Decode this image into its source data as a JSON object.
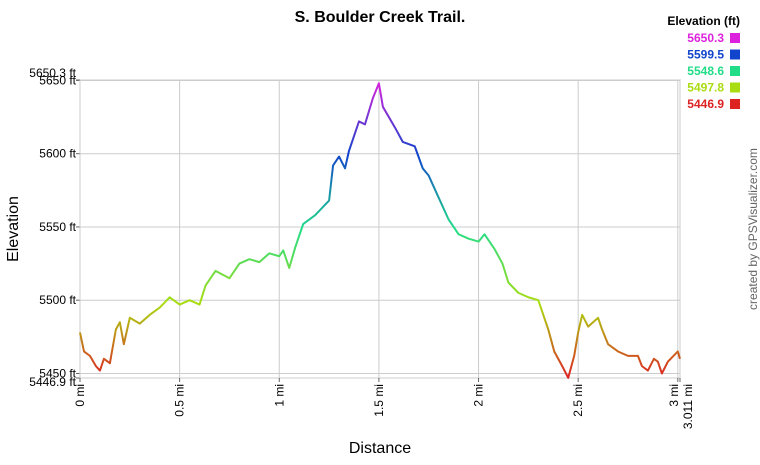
{
  "chart_data": {
    "type": "line",
    "title": "S. Boulder Creek Trail.",
    "x_label": "Distance",
    "y_label": "Elevation",
    "credit": "created by GPSVisualizer.com",
    "legend_title": "Elevation (ft)",
    "color_scale": [
      {
        "value": 5650.3,
        "color": "#dd22dd"
      },
      {
        "value": 5599.5,
        "color": "#1144cc"
      },
      {
        "value": 5548.6,
        "color": "#22dd88"
      },
      {
        "value": 5497.8,
        "color": "#aadd11"
      },
      {
        "value": 5446.9,
        "color": "#dd2222"
      }
    ],
    "xlim": [
      0,
      3.011
    ],
    "ylim": [
      5446.9,
      5650.3
    ],
    "grid": true,
    "xticks": [
      {
        "value": 0,
        "label": "0 mi"
      },
      {
        "value": 0.5,
        "label": "0.5 mi"
      },
      {
        "value": 1,
        "label": "1 mi"
      },
      {
        "value": 1.5,
        "label": "1.5 mi"
      },
      {
        "value": 2,
        "label": "2 mi"
      },
      {
        "value": 2.5,
        "label": "2.5 mi"
      },
      {
        "value": 3,
        "label": "3 mi"
      },
      {
        "value": 3.011,
        "label": "3.011 mi"
      }
    ],
    "yticks": [
      {
        "value": 5446.9,
        "label": "5446.9 ft"
      },
      {
        "value": 5450,
        "label": "5450 ft"
      },
      {
        "value": 5500,
        "label": "5500 ft"
      },
      {
        "value": 5550,
        "label": "5550 ft"
      },
      {
        "value": 5600,
        "label": "5600 ft"
      },
      {
        "value": 5650,
        "label": "5650 ft"
      },
      {
        "value": 5650.3,
        "label": "5650.3 ft"
      }
    ],
    "series": [
      {
        "x": [
          0,
          0.02,
          0.05,
          0.08,
          0.1,
          0.12,
          0.15,
          0.18,
          0.2,
          0.22,
          0.25,
          0.3,
          0.35,
          0.4,
          0.45,
          0.5,
          0.55,
          0.6,
          0.63,
          0.68,
          0.75,
          0.8,
          0.85,
          0.9,
          0.95,
          1.0,
          1.02,
          1.05,
          1.08,
          1.12,
          1.18,
          1.25,
          1.27,
          1.3,
          1.33,
          1.35,
          1.4,
          1.43,
          1.47,
          1.5,
          1.52,
          1.58,
          1.62,
          1.68,
          1.72,
          1.75,
          1.8,
          1.85,
          1.9,
          1.95,
          2.0,
          2.03,
          2.08,
          2.12,
          2.15,
          2.2,
          2.25,
          2.3,
          2.35,
          2.38,
          2.42,
          2.45,
          2.48,
          2.5,
          2.52,
          2.55,
          2.6,
          2.62,
          2.65,
          2.7,
          2.75,
          2.8,
          2.82,
          2.85,
          2.88,
          2.9,
          2.92,
          2.95,
          3.0,
          3.011
        ],
        "values": [
          5478,
          5465,
          5462,
          5455,
          5452,
          5460,
          5457,
          5480,
          5485,
          5470,
          5488,
          5484,
          5490,
          5495,
          5502,
          5497,
          5500,
          5497,
          5510,
          5520,
          5515,
          5525,
          5528,
          5526,
          5532,
          5530,
          5534,
          5522,
          5536,
          5552,
          5558,
          5568,
          5592,
          5598,
          5590,
          5602,
          5622,
          5620,
          5638,
          5648,
          5632,
          5618,
          5608,
          5605,
          5590,
          5585,
          5570,
          5555,
          5545,
          5542,
          5540,
          5545,
          5535,
          5525,
          5512,
          5505,
          5502,
          5500,
          5480,
          5465,
          5455,
          5447,
          5462,
          5478,
          5490,
          5482,
          5488,
          5480,
          5470,
          5465,
          5462,
          5462,
          5455,
          5452,
          5460,
          5458,
          5450,
          5458,
          5465,
          5460
        ]
      }
    ]
  }
}
